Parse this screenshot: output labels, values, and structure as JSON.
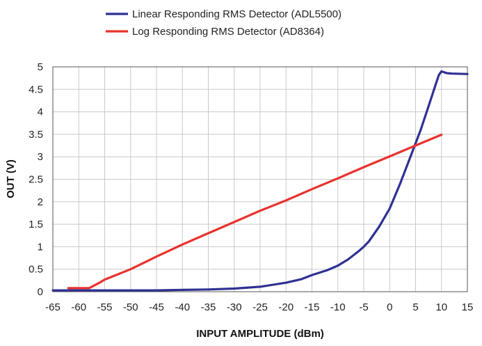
{
  "chart_data": {
    "type": "line",
    "xlabel": "INPUT AMPLITUDE (dBm)",
    "ylabel": "OUT (V)",
    "xlim": [
      -65,
      15
    ],
    "ylim": [
      0,
      5
    ],
    "x_ticks": [
      "-65",
      "-60",
      "-55",
      "-50",
      "-45",
      "-40",
      "-35",
      "-30",
      "-25",
      "-20",
      "-15",
      "-10",
      "-5",
      "0",
      "5",
      "10",
      "15"
    ],
    "y_ticks": [
      "0",
      "0.5",
      "1",
      "1.5",
      "2",
      "2.5",
      "3",
      "3.5",
      "4",
      "4.5",
      "5"
    ],
    "grid": true,
    "legend_position": "top",
    "series": [
      {
        "name": "Linear Responding RMS Detector (ADL5500)",
        "color": "#2e3192",
        "x": [
          -65,
          -60,
          -55,
          -50,
          -45,
          -40,
          -35,
          -30,
          -25,
          -20,
          -17,
          -15,
          -12,
          -10,
          -8,
          -6,
          -5,
          -4,
          -2,
          0,
          2,
          4,
          6,
          8,
          9,
          9.5,
          10,
          10.5,
          11,
          12,
          15
        ],
        "y": [
          0.03,
          0.03,
          0.03,
          0.03,
          0.03,
          0.04,
          0.05,
          0.07,
          0.11,
          0.2,
          0.28,
          0.37,
          0.48,
          0.58,
          0.72,
          0.9,
          1.0,
          1.12,
          1.45,
          1.85,
          2.4,
          3.0,
          3.6,
          4.3,
          4.65,
          4.82,
          4.9,
          4.88,
          4.86,
          4.85,
          4.84
        ]
      },
      {
        "name": "Log Responding RMS Detector (AD8364)",
        "color": "#e8322e",
        "x": [
          -62,
          -58,
          -56,
          -55,
          -50,
          -45,
          -40,
          -35,
          -30,
          -25,
          -20,
          -15,
          -10,
          -5,
          0,
          5,
          10
        ],
        "y": [
          0.08,
          0.08,
          0.2,
          0.27,
          0.5,
          0.78,
          1.05,
          1.3,
          1.55,
          1.8,
          2.03,
          2.28,
          2.52,
          2.77,
          3.01,
          3.25,
          3.49
        ]
      }
    ]
  }
}
